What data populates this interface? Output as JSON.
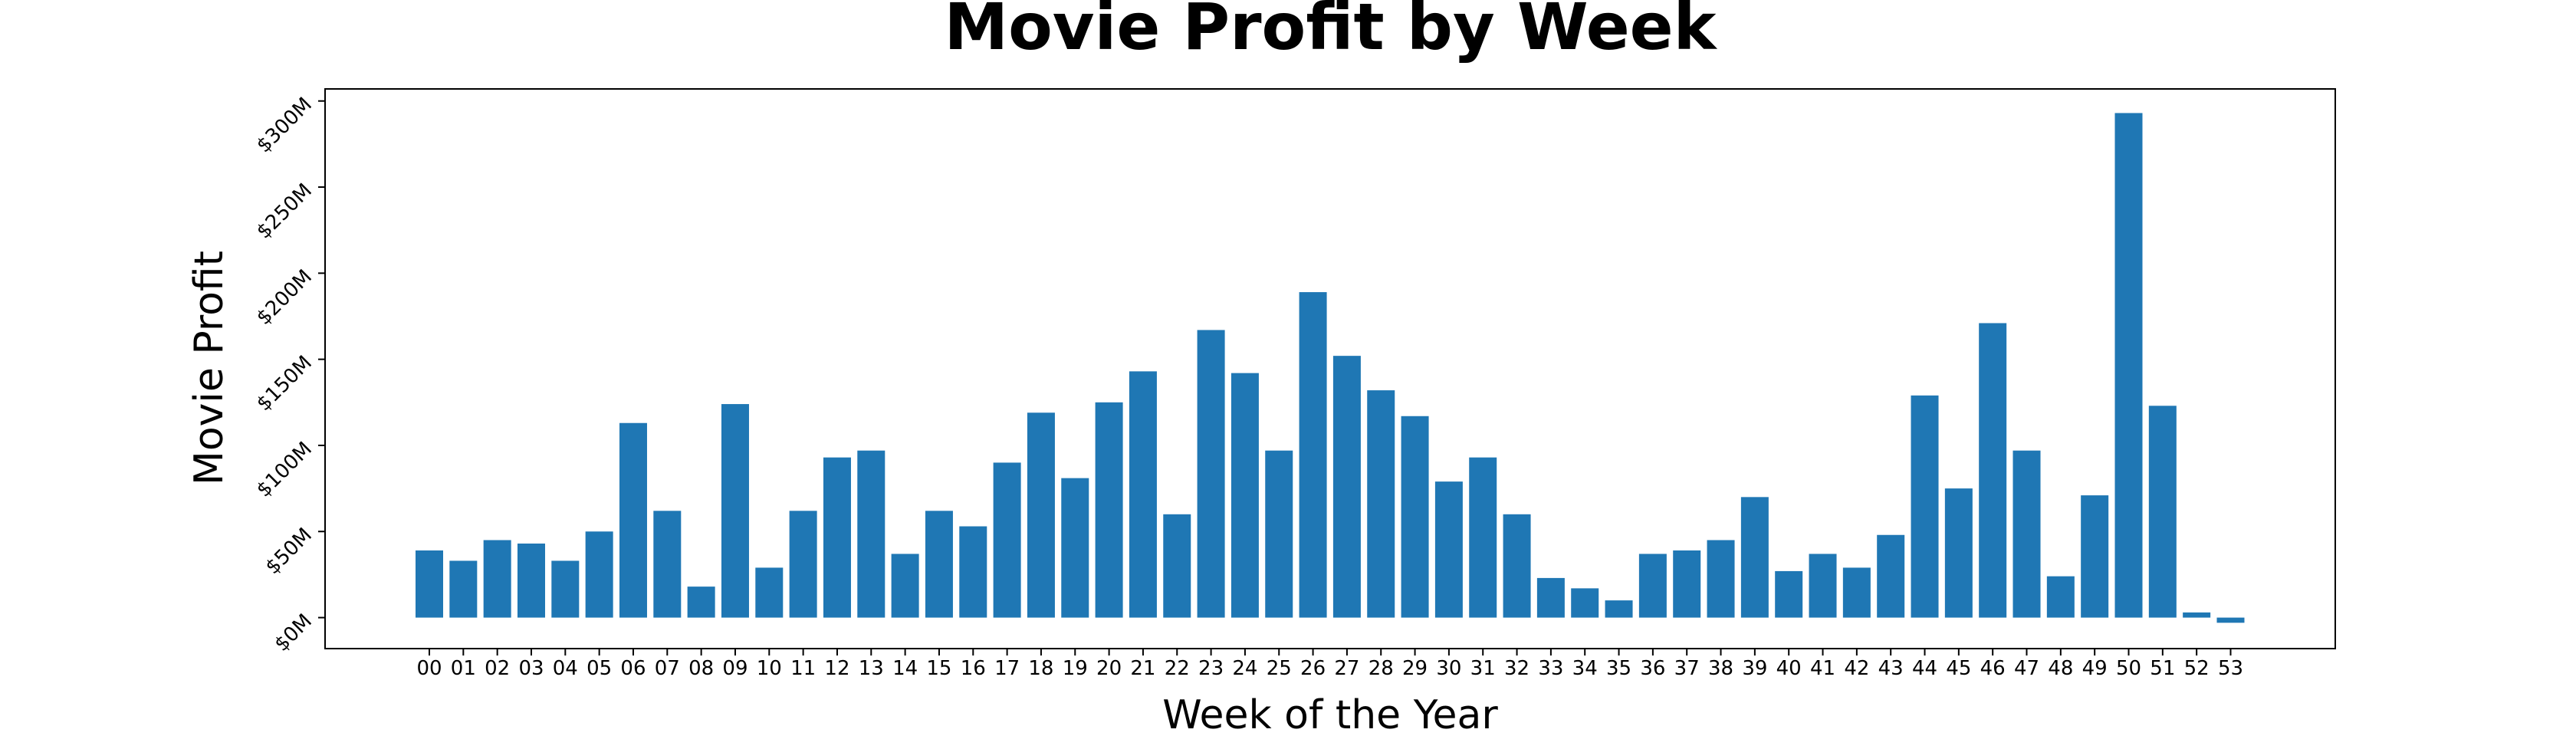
{
  "chart_data": {
    "type": "bar",
    "title": "Movie Profit by Week",
    "xlabel": "Week of the Year",
    "ylabel": "Movie Profit",
    "categories": [
      "00",
      "01",
      "02",
      "03",
      "04",
      "05",
      "06",
      "07",
      "08",
      "09",
      "10",
      "11",
      "12",
      "13",
      "14",
      "15",
      "16",
      "17",
      "18",
      "19",
      "20",
      "21",
      "22",
      "23",
      "24",
      "25",
      "26",
      "27",
      "28",
      "29",
      "30",
      "31",
      "32",
      "33",
      "34",
      "35",
      "36",
      "37",
      "38",
      "39",
      "40",
      "41",
      "42",
      "43",
      "44",
      "45",
      "46",
      "47",
      "48",
      "49",
      "50",
      "51",
      "52",
      "53"
    ],
    "values": [
      39,
      33,
      45,
      43,
      33,
      50,
      113,
      62,
      18,
      124,
      29,
      62,
      93,
      97,
      37,
      62,
      53,
      90,
      119,
      81,
      125,
      143,
      60,
      167,
      142,
      97,
      189,
      152,
      132,
      117,
      79,
      93,
      60,
      23,
      17,
      10,
      37,
      39,
      45,
      70,
      27,
      37,
      29,
      48,
      129,
      75,
      171,
      97,
      24,
      71,
      293,
      123,
      3,
      -3
    ],
    "unit": "millions USD",
    "ylim": [
      -18,
      307
    ],
    "yticks": [
      0,
      50,
      100,
      150,
      200,
      250,
      300
    ],
    "ytick_labels": [
      "$0M",
      "$50M",
      "$100M",
      "$150M",
      "$200M",
      "$250M",
      "$300M"
    ],
    "bar_color": "#1f77b4",
    "grid": false,
    "legend": false
  }
}
